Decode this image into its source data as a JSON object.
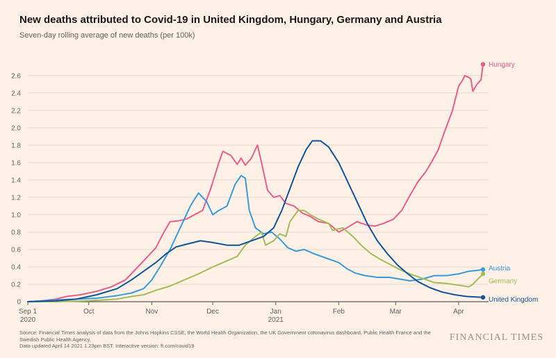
{
  "header": {
    "title": "New deaths attributed to Covid-19 in United Kingdom, Hungary, Germany and Austria",
    "subtitle": "Seven-day rolling average of new deaths (per 100k)"
  },
  "footer": {
    "source_line1": "Source: Financial Times analysis of data from the Johns Hopkins CSSE, the World Health Organization, the UK Government coronavirus dashboard, Public Health France and the",
    "source_line2": "Swedish Public Health Agency.",
    "source_line3": "Data updated April 14 2021 1.23pm BST. Interactive version: ft.com/covid19",
    "brand": "FINANCIAL TIMES"
  },
  "chart_data": {
    "type": "line",
    "title": "New deaths attributed to Covid-19 in United Kingdom, Hungary, Germany and Austria",
    "subtitle": "Seven-day rolling average of new deaths (per 100k)",
    "xlabel": "",
    "ylabel": "",
    "x_range": [
      "2020-09-01",
      "2021-04-13"
    ],
    "ylim": [
      0,
      2.75
    ],
    "yticks": [
      0,
      0.2,
      0.4,
      0.6,
      0.8,
      1.0,
      1.2,
      1.4,
      1.6,
      1.8,
      2.0,
      2.2,
      2.4,
      2.6
    ],
    "ytick_labels": [
      "0",
      "0.2",
      "0.4",
      "0.6",
      "0.8",
      "1.0",
      "1.2",
      "1.4",
      "1.6",
      "1.8",
      "2.0",
      "2.2",
      "2.4",
      "2.6"
    ],
    "xticks": [
      {
        "date": "2020-09-01",
        "line1": "Sep 1",
        "line2": "2020"
      },
      {
        "date": "2020-10-01",
        "line1": "Oct",
        "line2": ""
      },
      {
        "date": "2020-11-01",
        "line1": "Nov",
        "line2": ""
      },
      {
        "date": "2020-12-01",
        "line1": "Dec",
        "line2": ""
      },
      {
        "date": "2021-01-01",
        "line1": "Jan",
        "line2": "2021"
      },
      {
        "date": "2021-02-01",
        "line1": "Feb",
        "line2": ""
      },
      {
        "date": "2021-03-01",
        "line1": "Mar",
        "line2": ""
      },
      {
        "date": "2021-04-01",
        "line1": "Apr",
        "line2": ""
      }
    ],
    "grid": true,
    "legend": "end-of-line labels",
    "series": [
      {
        "name": "Hungary",
        "color": "#e95d8c",
        "points": [
          [
            "2020-09-01",
            0.0
          ],
          [
            "2020-09-08",
            0.01
          ],
          [
            "2020-09-15",
            0.03
          ],
          [
            "2020-09-20",
            0.06
          ],
          [
            "2020-09-27",
            0.08
          ],
          [
            "2020-10-05",
            0.12
          ],
          [
            "2020-10-12",
            0.17
          ],
          [
            "2020-10-19",
            0.25
          ],
          [
            "2020-10-26",
            0.42
          ],
          [
            "2020-10-30",
            0.52
          ],
          [
            "2020-11-03",
            0.62
          ],
          [
            "2020-11-07",
            0.8
          ],
          [
            "2020-11-10",
            0.92
          ],
          [
            "2020-11-14",
            0.93
          ],
          [
            "2020-11-18",
            0.95
          ],
          [
            "2020-11-22",
            1.0
          ],
          [
            "2020-11-26",
            1.05
          ],
          [
            "2020-11-30",
            1.3
          ],
          [
            "2020-12-04",
            1.6
          ],
          [
            "2020-12-06",
            1.73
          ],
          [
            "2020-12-10",
            1.68
          ],
          [
            "2020-12-13",
            1.58
          ],
          [
            "2020-12-15",
            1.65
          ],
          [
            "2020-12-17",
            1.57
          ],
          [
            "2020-12-20",
            1.65
          ],
          [
            "2020-12-23",
            1.8
          ],
          [
            "2020-12-25",
            1.6
          ],
          [
            "2020-12-28",
            1.28
          ],
          [
            "2020-12-31",
            1.2
          ],
          [
            "2021-01-03",
            1.22
          ],
          [
            "2021-01-06",
            1.13
          ],
          [
            "2021-01-10",
            1.1
          ],
          [
            "2021-01-14",
            1.02
          ],
          [
            "2021-01-18",
            0.98
          ],
          [
            "2021-01-22",
            0.92
          ],
          [
            "2021-01-27",
            0.9
          ],
          [
            "2021-02-01",
            0.8
          ],
          [
            "2021-02-05",
            0.85
          ],
          [
            "2021-02-10",
            0.92
          ],
          [
            "2021-02-15",
            0.88
          ],
          [
            "2021-02-19",
            0.87
          ],
          [
            "2021-02-23",
            0.9
          ],
          [
            "2021-02-28",
            0.95
          ],
          [
            "2021-03-04",
            1.05
          ],
          [
            "2021-03-08",
            1.22
          ],
          [
            "2021-03-12",
            1.38
          ],
          [
            "2021-03-16",
            1.5
          ],
          [
            "2021-03-19",
            1.62
          ],
          [
            "2021-03-22",
            1.75
          ],
          [
            "2021-03-25",
            1.95
          ],
          [
            "2021-03-29",
            2.2
          ],
          [
            "2021-04-01",
            2.48
          ],
          [
            "2021-04-03",
            2.55
          ],
          [
            "2021-04-04",
            2.6
          ],
          [
            "2021-04-06",
            2.58
          ],
          [
            "2021-04-07",
            2.56
          ],
          [
            "2021-04-08",
            2.42
          ],
          [
            "2021-04-10",
            2.5
          ],
          [
            "2021-04-12",
            2.55
          ],
          [
            "2021-04-13",
            2.73
          ]
        ]
      },
      {
        "name": "Austria",
        "color": "#3a9ad9",
        "points": [
          [
            "2020-09-01",
            0.0
          ],
          [
            "2020-09-15",
            0.02
          ],
          [
            "2020-09-25",
            0.03
          ],
          [
            "2020-10-05",
            0.04
          ],
          [
            "2020-10-15",
            0.07
          ],
          [
            "2020-10-22",
            0.1
          ],
          [
            "2020-10-28",
            0.15
          ],
          [
            "2020-11-01",
            0.25
          ],
          [
            "2020-11-05",
            0.4
          ],
          [
            "2020-11-10",
            0.6
          ],
          [
            "2020-11-15",
            0.85
          ],
          [
            "2020-11-20",
            1.1
          ],
          [
            "2020-11-24",
            1.25
          ],
          [
            "2020-11-28",
            1.15
          ],
          [
            "2020-12-01",
            1.0
          ],
          [
            "2020-12-04",
            1.05
          ],
          [
            "2020-12-08",
            1.1
          ],
          [
            "2020-12-12",
            1.35
          ],
          [
            "2020-12-15",
            1.45
          ],
          [
            "2020-12-17",
            1.42
          ],
          [
            "2020-12-19",
            1.05
          ],
          [
            "2020-12-22",
            0.85
          ],
          [
            "2020-12-26",
            0.78
          ],
          [
            "2020-12-30",
            0.8
          ],
          [
            "2021-01-03",
            0.72
          ],
          [
            "2021-01-07",
            0.62
          ],
          [
            "2021-01-11",
            0.58
          ],
          [
            "2021-01-15",
            0.6
          ],
          [
            "2021-01-20",
            0.55
          ],
          [
            "2021-01-26",
            0.5
          ],
          [
            "2021-02-01",
            0.45
          ],
          [
            "2021-02-05",
            0.38
          ],
          [
            "2021-02-09",
            0.33
          ],
          [
            "2021-02-14",
            0.3
          ],
          [
            "2021-02-20",
            0.28
          ],
          [
            "2021-02-26",
            0.28
          ],
          [
            "2021-03-03",
            0.26
          ],
          [
            "2021-03-08",
            0.24
          ],
          [
            "2021-03-14",
            0.26
          ],
          [
            "2021-03-20",
            0.3
          ],
          [
            "2021-03-26",
            0.3
          ],
          [
            "2021-04-01",
            0.32
          ],
          [
            "2021-04-06",
            0.35
          ],
          [
            "2021-04-10",
            0.36
          ],
          [
            "2021-04-13",
            0.37
          ]
        ]
      },
      {
        "name": "Germany",
        "color": "#a2bc5a",
        "points": [
          [
            "2020-09-01",
            0.0
          ],
          [
            "2020-09-15",
            0.0
          ],
          [
            "2020-10-01",
            0.01
          ],
          [
            "2020-10-15",
            0.03
          ],
          [
            "2020-10-22",
            0.06
          ],
          [
            "2020-10-28",
            0.08
          ],
          [
            "2020-11-03",
            0.13
          ],
          [
            "2020-11-10",
            0.18
          ],
          [
            "2020-11-17",
            0.25
          ],
          [
            "2020-11-24",
            0.32
          ],
          [
            "2020-12-01",
            0.4
          ],
          [
            "2020-12-08",
            0.47
          ],
          [
            "2020-12-13",
            0.52
          ],
          [
            "2020-12-17",
            0.65
          ],
          [
            "2020-12-22",
            0.75
          ],
          [
            "2020-12-25",
            0.8
          ],
          [
            "2020-12-27",
            0.65
          ],
          [
            "2020-12-31",
            0.7
          ],
          [
            "2021-01-03",
            0.78
          ],
          [
            "2021-01-06",
            0.75
          ],
          [
            "2021-01-08",
            0.92
          ],
          [
            "2021-01-12",
            1.05
          ],
          [
            "2021-01-15",
            1.05
          ],
          [
            "2021-01-18",
            1.0
          ],
          [
            "2021-01-22",
            0.95
          ],
          [
            "2021-01-27",
            0.9
          ],
          [
            "2021-01-29",
            0.82
          ],
          [
            "2021-02-03",
            0.85
          ],
          [
            "2021-02-08",
            0.75
          ],
          [
            "2021-02-12",
            0.65
          ],
          [
            "2021-02-17",
            0.55
          ],
          [
            "2021-02-22",
            0.48
          ],
          [
            "2021-02-27",
            0.42
          ],
          [
            "2021-03-03",
            0.37
          ],
          [
            "2021-03-08",
            0.32
          ],
          [
            "2021-03-14",
            0.27
          ],
          [
            "2021-03-20",
            0.22
          ],
          [
            "2021-03-26",
            0.21
          ],
          [
            "2021-04-01",
            0.19
          ],
          [
            "2021-04-06",
            0.17
          ],
          [
            "2021-04-08",
            0.2
          ],
          [
            "2021-04-10",
            0.25
          ],
          [
            "2021-04-13",
            0.32
          ]
        ]
      },
      {
        "name": "United Kingdom",
        "color": "#0f5499",
        "points": [
          [
            "2020-09-01",
            0.0
          ],
          [
            "2020-09-15",
            0.01
          ],
          [
            "2020-09-25",
            0.03
          ],
          [
            "2020-10-05",
            0.08
          ],
          [
            "2020-10-15",
            0.15
          ],
          [
            "2020-10-22",
            0.25
          ],
          [
            "2020-10-28",
            0.35
          ],
          [
            "2020-11-03",
            0.45
          ],
          [
            "2020-11-08",
            0.55
          ],
          [
            "2020-11-13",
            0.63
          ],
          [
            "2020-11-18",
            0.66
          ],
          [
            "2020-11-25",
            0.7
          ],
          [
            "2020-12-01",
            0.68
          ],
          [
            "2020-12-08",
            0.65
          ],
          [
            "2020-12-14",
            0.65
          ],
          [
            "2020-12-20",
            0.7
          ],
          [
            "2020-12-26",
            0.75
          ],
          [
            "2020-12-31",
            0.85
          ],
          [
            "2021-01-04",
            1.05
          ],
          [
            "2021-01-08",
            1.3
          ],
          [
            "2021-01-12",
            1.55
          ],
          [
            "2021-01-16",
            1.75
          ],
          [
            "2021-01-19",
            1.85
          ],
          [
            "2021-01-23",
            1.85
          ],
          [
            "2021-01-27",
            1.78
          ],
          [
            "2021-02-01",
            1.6
          ],
          [
            "2021-02-05",
            1.4
          ],
          [
            "2021-02-10",
            1.15
          ],
          [
            "2021-02-15",
            0.9
          ],
          [
            "2021-02-20",
            0.7
          ],
          [
            "2021-02-25",
            0.55
          ],
          [
            "2021-03-02",
            0.42
          ],
          [
            "2021-03-07",
            0.32
          ],
          [
            "2021-03-12",
            0.23
          ],
          [
            "2021-03-18",
            0.16
          ],
          [
            "2021-03-24",
            0.11
          ],
          [
            "2021-03-30",
            0.08
          ],
          [
            "2021-04-05",
            0.06
          ],
          [
            "2021-04-13",
            0.05
          ]
        ]
      }
    ]
  }
}
